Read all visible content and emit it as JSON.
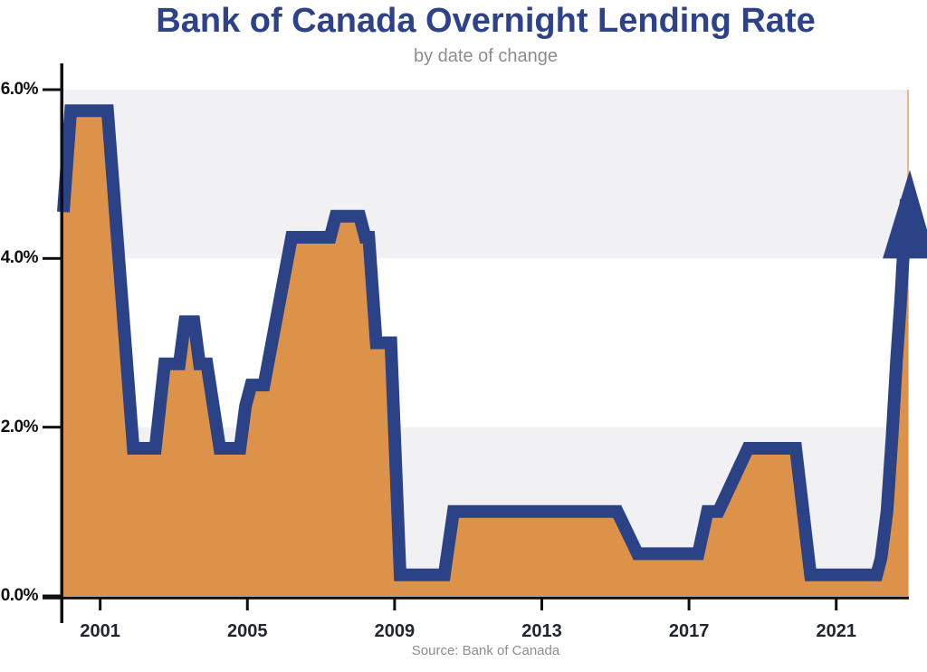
{
  "header": {
    "title": "Bank of Canada Overnight Lending Rate",
    "subtitle": "by date of change"
  },
  "footer": {
    "source": "Source: Bank of Canada"
  },
  "colors": {
    "title": "#2e4289",
    "subtitle": "#8b8b94",
    "line": "#2b4287",
    "area": "#dd9249",
    "band": "#f1f1f3",
    "axis": "#0f0f12",
    "y_label": "#0f0f12",
    "x_label": "#23262e",
    "source": "#8d8d96",
    "right_edge": "#ddab77"
  },
  "chart_data": {
    "type": "area-line",
    "title": "Bank of Canada Overnight Lending Rate",
    "subtitle": "by date of change",
    "source": "Source: Bank of Canada",
    "xlabel": "",
    "ylabel": "",
    "x_axis": {
      "min": 2000.0,
      "max": 2022.95,
      "ticks": [
        2001,
        2005,
        2009,
        2013,
        2017,
        2021
      ]
    },
    "y_axis": {
      "min": 0,
      "max": 6,
      "ticks": [
        {
          "value": 6,
          "label": "6.0%"
        },
        {
          "value": 4,
          "label": "4.0%"
        },
        {
          "value": 2,
          "label": "2.0%"
        },
        {
          "value": 0,
          "label": "0.0%"
        }
      ]
    },
    "shaded_bands": [
      {
        "from": 4,
        "to": 6
      },
      {
        "from": 0,
        "to": 2
      }
    ],
    "series": [
      {
        "name": "overnight-lending-rate-percent",
        "points": [
          [
            2000.0,
            4.55
          ],
          [
            2000.2,
            5.75
          ],
          [
            2001.2,
            5.75
          ],
          [
            2001.9,
            1.75
          ],
          [
            2002.5,
            1.75
          ],
          [
            2002.75,
            2.75
          ],
          [
            2003.15,
            2.75
          ],
          [
            2003.3,
            3.25
          ],
          [
            2003.55,
            3.25
          ],
          [
            2003.7,
            2.75
          ],
          [
            2003.9,
            2.75
          ],
          [
            2004.25,
            1.75
          ],
          [
            2004.8,
            1.75
          ],
          [
            2004.95,
            2.25
          ],
          [
            2005.1,
            2.5
          ],
          [
            2005.45,
            2.5
          ],
          [
            2006.2,
            4.25
          ],
          [
            2007.25,
            4.25
          ],
          [
            2007.4,
            4.5
          ],
          [
            2008.05,
            4.5
          ],
          [
            2008.2,
            4.25
          ],
          [
            2008.3,
            4.25
          ],
          [
            2008.5,
            3.0
          ],
          [
            2008.9,
            3.0
          ],
          [
            2009.15,
            0.25
          ],
          [
            2010.35,
            0.25
          ],
          [
            2010.6,
            1.0
          ],
          [
            2015.05,
            1.0
          ],
          [
            2015.6,
            0.5
          ],
          [
            2017.25,
            0.5
          ],
          [
            2017.5,
            1.0
          ],
          [
            2017.8,
            1.0
          ],
          [
            2018.6,
            1.75
          ],
          [
            2019.9,
            1.75
          ],
          [
            2020.3,
            0.25
          ],
          [
            2022.1,
            0.25
          ],
          [
            2022.22,
            0.45
          ],
          [
            2022.38,
            1.0
          ],
          [
            2022.52,
            1.9
          ],
          [
            2022.64,
            2.8
          ],
          [
            2022.75,
            3.5
          ],
          [
            2022.83,
            4.1
          ],
          [
            2022.9,
            4.7
          ]
        ]
      }
    ],
    "annotation": {
      "type": "up-arrow",
      "tip_year": 2023.0,
      "tip_value": 5.05,
      "base_value": 4.0
    }
  }
}
